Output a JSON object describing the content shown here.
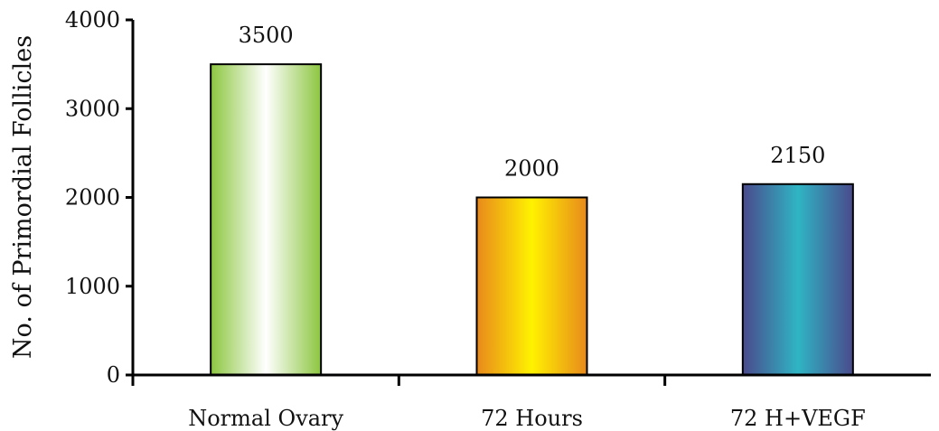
{
  "chart_data": {
    "type": "bar",
    "categories": [
      "Normal Ovary",
      "72 Hours",
      "72 H+VEGF"
    ],
    "values": [
      3500,
      2000,
      2150
    ],
    "data_labels": [
      "3500",
      "2000",
      "2150"
    ],
    "title": "",
    "xlabel": "",
    "ylabel": "No. of Primordial Follicles",
    "ylim": [
      0,
      4000
    ],
    "yticks": [
      0,
      1000,
      2000,
      3000,
      4000
    ],
    "ytick_labels": [
      "0",
      "1000",
      "2000",
      "3000",
      "4000"
    ],
    "grid": false,
    "legend": "none",
    "bar_colors": [
      {
        "edge": "#8cc63f",
        "center": "#ffffff"
      },
      {
        "edge": "#e8891c",
        "center": "#fff200"
      },
      {
        "edge": "#4a4a8c",
        "center": "#2fb5c4"
      }
    ]
  }
}
